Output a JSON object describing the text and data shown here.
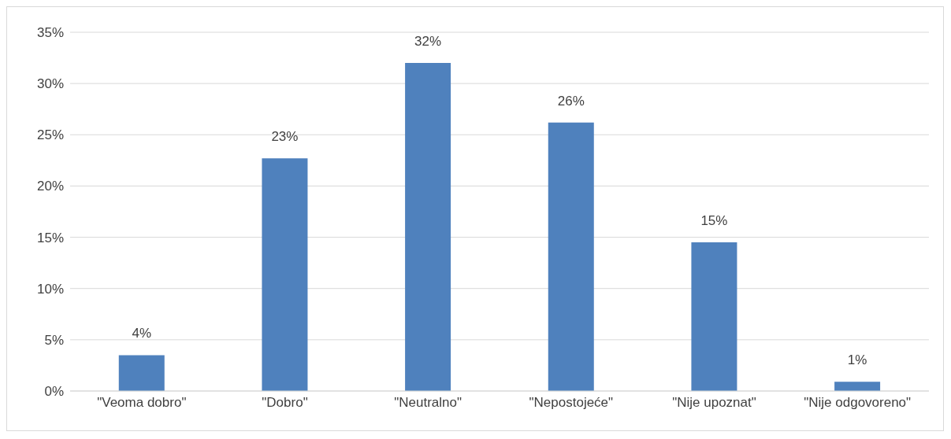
{
  "chart_data": {
    "type": "bar",
    "categories": [
      "\"Veoma dobro\"",
      "\"Dobro\"",
      "\"Neutralno\"",
      "\"Nepostojeće\"",
      "\"Nije upoznat\"",
      "\"Nije odgovoreno\""
    ],
    "values": [
      3.5,
      22.7,
      32.0,
      26.2,
      14.5,
      0.9
    ],
    "value_labels": [
      "4%",
      "23%",
      "32%",
      "26%",
      "15%",
      "1%"
    ],
    "color": "#4f81bd",
    "ylim": [
      0,
      35
    ],
    "yticks": [
      {
        "value": 0,
        "label": "0%"
      },
      {
        "value": 5,
        "label": "5%"
      },
      {
        "value": 10,
        "label": "10%"
      },
      {
        "value": 15,
        "label": "15%"
      },
      {
        "value": 20,
        "label": "20%"
      },
      {
        "value": 25,
        "label": "25%"
      },
      {
        "value": 30,
        "label": "30%"
      },
      {
        "value": 35,
        "label": "35%"
      }
    ],
    "grid": "y"
  }
}
